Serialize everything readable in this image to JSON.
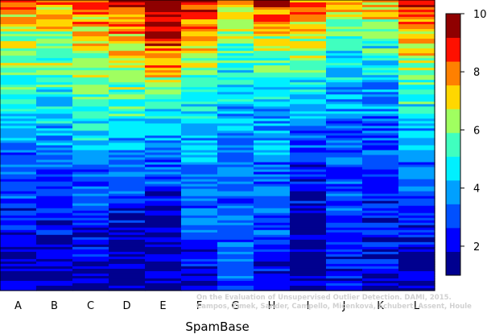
{
  "chart_data": {
    "type": "heatmap",
    "title": "",
    "xlabel": "SpamBase",
    "ylabel": "",
    "categories": [
      "A",
      "B",
      "C",
      "D",
      "E",
      "F",
      "G",
      "H",
      "I",
      "J",
      "K",
      "L"
    ],
    "colorbar": {
      "range": [
        1,
        10
      ],
      "ticks": [
        "2",
        "4",
        "6",
        "8",
        "10"
      ],
      "tick_values": [
        2,
        4,
        6,
        8,
        10
      ],
      "colors": [
        "#00008f",
        "#0000ff",
        "#0050ff",
        "#00a0ff",
        "#00f0ff",
        "#40ffbf",
        "#a0ff60",
        "#ffd700",
        "#ff8000",
        "#ff1000",
        "#8f0000"
      ]
    },
    "column_profiles": [
      {
        "column": "A",
        "values_top_to_bottom": [
          8.2,
          6.5,
          5.8,
          5.0,
          4.2,
          3.3,
          2.7,
          2.2,
          1.8,
          1.5
        ]
      },
      {
        "column": "B",
        "values_top_to_bottom": [
          8.0,
          6.4,
          5.7,
          4.9,
          4.1,
          3.2,
          2.6,
          2.1,
          1.7,
          1.4
        ]
      },
      {
        "column": "C",
        "values_top_to_bottom": [
          8.3,
          7.0,
          6.5,
          5.8,
          4.6,
          3.6,
          2.8,
          2.3,
          1.9,
          1.6
        ]
      },
      {
        "column": "D",
        "values_top_to_bottom": [
          9.0,
          7.8,
          6.8,
          5.6,
          4.5,
          3.3,
          2.6,
          2.0,
          1.5,
          1.2
        ]
      },
      {
        "column": "E",
        "values_top_to_bottom": [
          10.0,
          9.4,
          7.5,
          5.5,
          4.2,
          3.1,
          2.4,
          1.8,
          1.4,
          1.1
        ]
      },
      {
        "column": "F",
        "values_top_to_bottom": [
          8.6,
          7.2,
          6.1,
          5.0,
          4.3,
          3.9,
          3.4,
          2.9,
          2.5,
          2.2
        ]
      },
      {
        "column": "G",
        "values_top_to_bottom": [
          7.6,
          6.2,
          5.4,
          4.5,
          3.8,
          3.6,
          3.4,
          3.3,
          3.2,
          3.1
        ]
      },
      {
        "column": "H",
        "values_top_to_bottom": [
          8.8,
          7.0,
          5.8,
          4.7,
          3.8,
          3.5,
          3.2,
          2.8,
          2.4,
          2.2
        ]
      },
      {
        "column": "I",
        "values_top_to_bottom": [
          8.5,
          7.1,
          5.6,
          4.4,
          3.3,
          2.6,
          2.2,
          1.6,
          1.3,
          1.1
        ]
      },
      {
        "column": "J",
        "values_top_to_bottom": [
          7.3,
          5.6,
          4.4,
          3.7,
          3.3,
          3.1,
          2.9,
          2.7,
          2.5,
          2.3
        ]
      },
      {
        "column": "K",
        "values_top_to_bottom": [
          7.6,
          5.8,
          4.6,
          3.9,
          3.3,
          2.9,
          2.6,
          2.3,
          2.0,
          1.8
        ]
      },
      {
        "column": "L",
        "values_top_to_bottom": [
          9.2,
          7.6,
          6.2,
          5.1,
          4.3,
          3.6,
          2.9,
          2.3,
          1.7,
          1.3
        ]
      }
    ]
  },
  "credit": {
    "line1": "On the Evaluation of Unsupervised Outlier Detection. DAMI, 2015.",
    "line2": "Campos, Zimek, Sander, Campello, Micenková, Schubert, Assent, Houle"
  }
}
